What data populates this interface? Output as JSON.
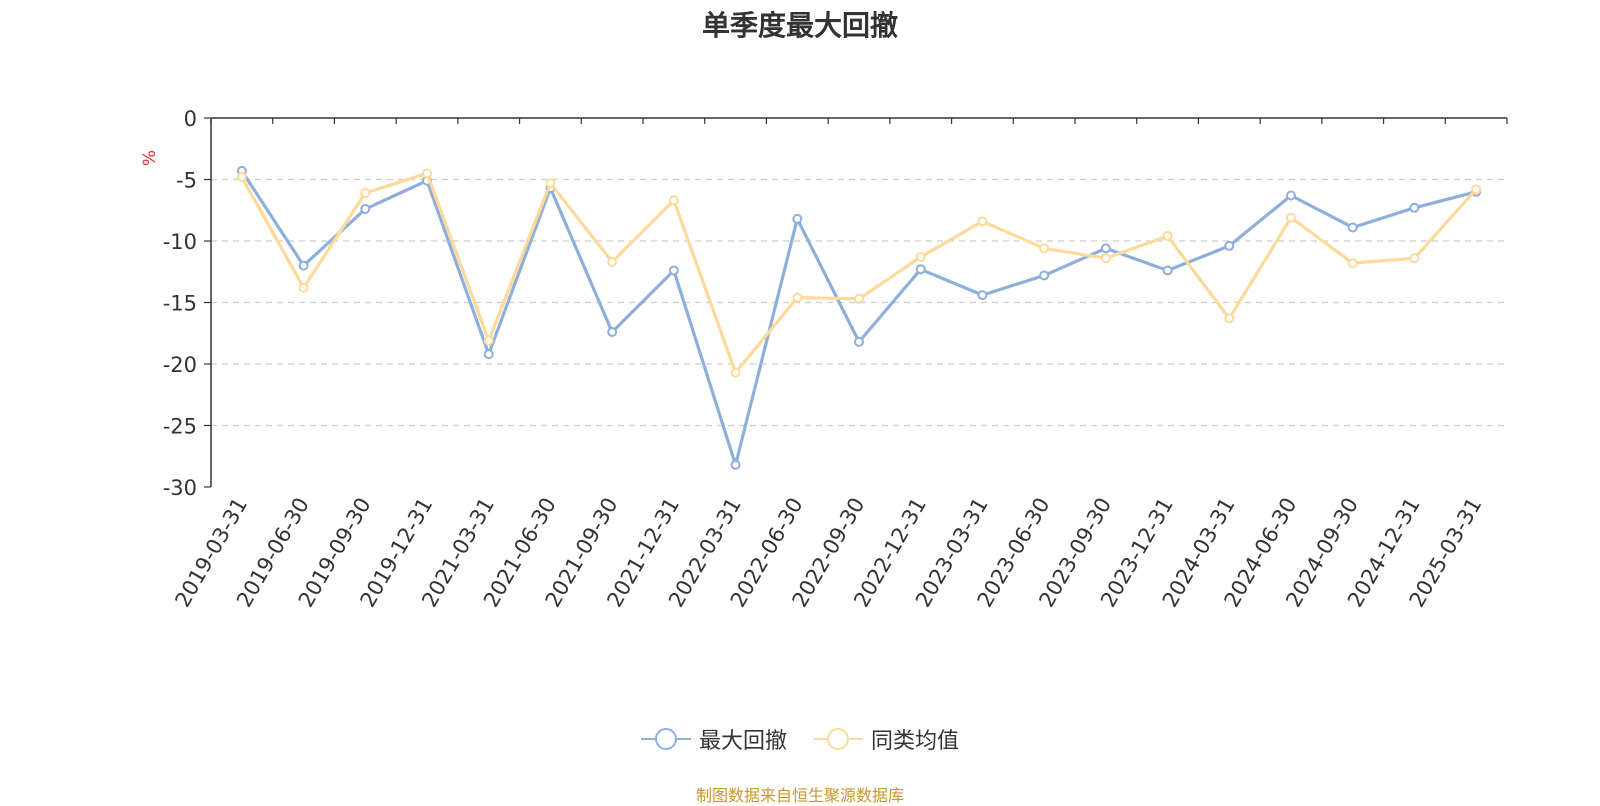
{
  "chart_data": {
    "type": "line",
    "title": "单季度最大回撤",
    "ylabel": "%",
    "ylim": [
      -30,
      0
    ],
    "yticks": [
      0,
      -5,
      -10,
      -15,
      -20,
      -25,
      -30
    ],
    "grid": true,
    "legend_position": "bottom-center",
    "categories": [
      "2019-03-31",
      "2019-06-30",
      "2019-09-30",
      "2019-12-31",
      "2021-03-31",
      "2021-06-30",
      "2021-09-30",
      "2021-12-31",
      "2022-03-31",
      "2022-06-30",
      "2022-09-30",
      "2022-12-31",
      "2023-03-31",
      "2023-06-30",
      "2023-09-30",
      "2023-12-31",
      "2024-03-31",
      "2024-06-30",
      "2024-09-30",
      "2024-12-31",
      "2025-03-31"
    ],
    "series": [
      {
        "name": "最大回撤",
        "color": "#8eaedb",
        "values": [
          -4.3,
          -12.0,
          -7.4,
          -5.1,
          -19.2,
          -5.7,
          -17.4,
          -12.4,
          -28.2,
          -8.2,
          -18.2,
          -12.3,
          -14.4,
          -12.8,
          -10.6,
          -12.4,
          -10.4,
          -6.3,
          -8.9,
          -7.3,
          -6.0
        ]
      },
      {
        "name": "同类均值",
        "color": "#fdd99a",
        "values": [
          -4.8,
          -13.8,
          -6.1,
          -4.5,
          -18.1,
          -5.3,
          -11.7,
          -6.7,
          -20.7,
          -14.6,
          -14.7,
          -11.3,
          -8.4,
          -10.6,
          -11.4,
          -9.6,
          -16.3,
          -8.1,
          -11.8,
          -11.4,
          -5.8
        ]
      }
    ]
  },
  "footer": {
    "source_text": "制图数据来自恒生聚源数据库",
    "source_color": "#c8962d"
  }
}
